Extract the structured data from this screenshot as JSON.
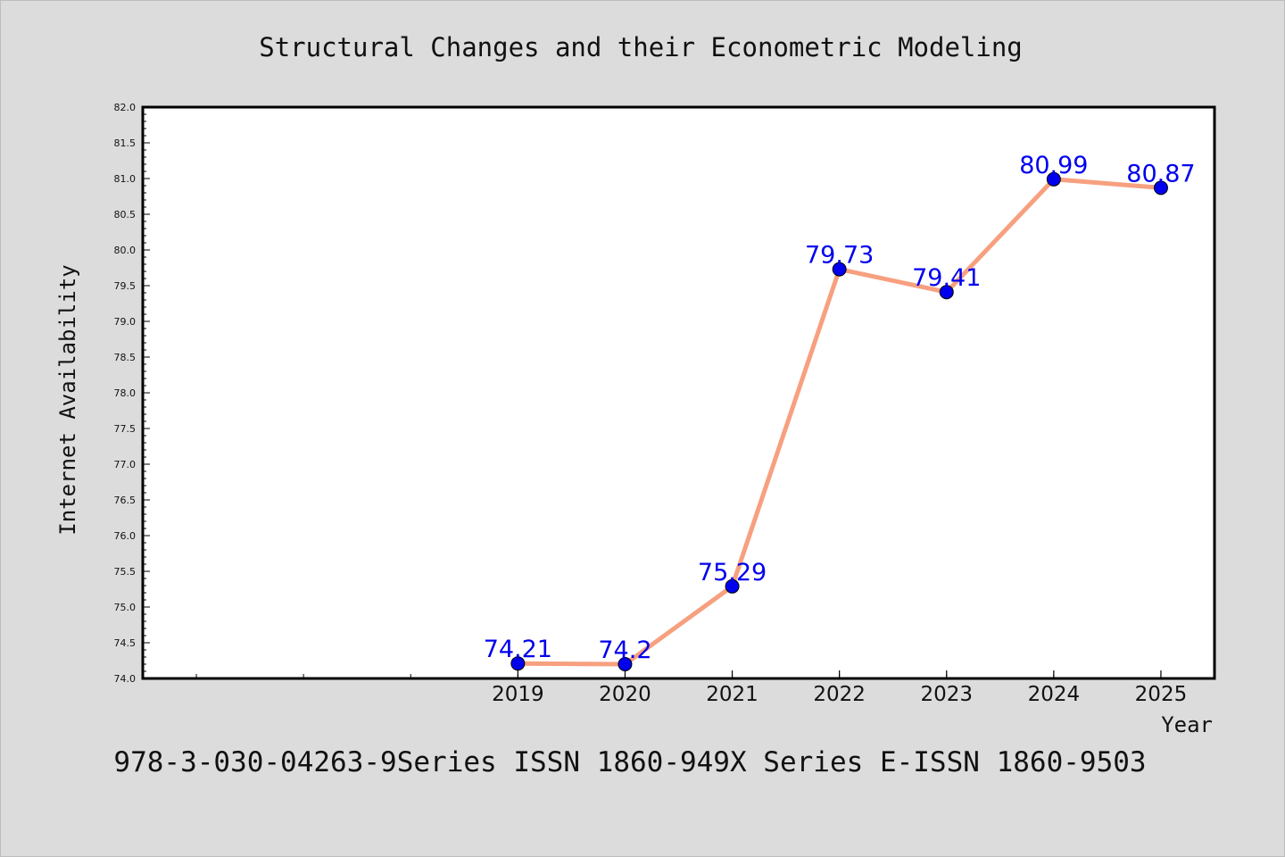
{
  "colors": {
    "background": "#dcdcdc",
    "plot_background": "#ffffff",
    "line": "#f7a07f",
    "marker": "#0000ee",
    "data_label": "#0000ee"
  },
  "footer": "978-3-030-04263-9Series ISSN 1860-949X Series E-ISSN 1860-9503",
  "chart_data": {
    "type": "line",
    "title": "Structural Changes and their Econometric Modeling",
    "xlabel": "Year",
    "ylabel": "Internet Availability",
    "x": [
      2019,
      2020,
      2021,
      2022,
      2023,
      2024,
      2025
    ],
    "x_tick_labels": [
      "2019",
      "2020",
      "2021",
      "2022",
      "2023",
      "2024",
      "2025"
    ],
    "series": [
      {
        "values": [
          74.21,
          74.2,
          75.29,
          79.73,
          79.41,
          80.99,
          80.87
        ]
      }
    ],
    "data_labels": [
      "74.21",
      "74.2",
      "75.29",
      "79.73",
      "79.41",
      "80.99",
      "80.87"
    ],
    "xlim": [
      2015.5,
      2025.5
    ],
    "ylim": [
      74.0,
      82.0
    ],
    "y_ticks": [
      "74.0",
      "74.5",
      "75.0",
      "75.5",
      "76.0",
      "76.5",
      "77.0",
      "77.5",
      "78.0",
      "78.5",
      "79.0",
      "79.5",
      "80.0",
      "80.5",
      "81.0",
      "81.5",
      "82.0"
    ],
    "grid": false,
    "legend": "none",
    "markers": true
  }
}
